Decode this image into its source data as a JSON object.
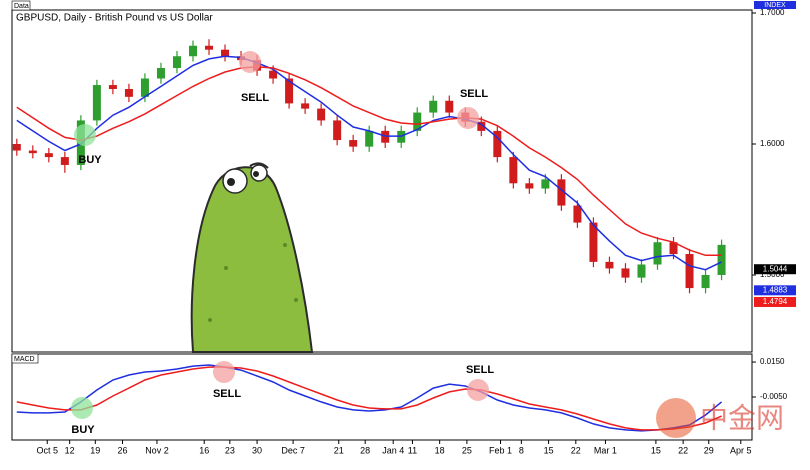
{
  "chart_data": [
    {
      "type": "candlestick",
      "title": "GBPUSD, Daily - British Pound vs US Dollar",
      "panel_label": "Data",
      "axis_badge": "INDEX",
      "x": [
        0,
        1,
        2,
        3,
        4,
        5,
        6,
        7,
        8,
        9,
        10,
        11,
        12,
        13,
        14,
        15,
        16,
        17,
        18,
        19,
        20,
        21,
        22,
        23,
        24,
        25,
        26,
        27,
        28,
        29,
        30,
        31,
        32,
        33,
        34,
        35,
        36,
        37,
        38,
        39,
        40,
        41,
        42,
        43,
        44
      ],
      "open": [
        1.6,
        1.595,
        1.593,
        1.59,
        1.584,
        1.618,
        1.645,
        1.642,
        1.636,
        1.65,
        1.658,
        1.667,
        1.675,
        1.672,
        1.667,
        1.664,
        1.656,
        1.65,
        1.631,
        1.627,
        1.618,
        1.603,
        1.598,
        1.61,
        1.601,
        1.61,
        1.624,
        1.633,
        1.624,
        1.617,
        1.61,
        1.59,
        1.57,
        1.566,
        1.573,
        1.553,
        1.54,
        1.51,
        1.505,
        1.498,
        1.508,
        1.525,
        1.516,
        1.49,
        1.5
      ],
      "high": [
        1.604,
        1.599,
        1.597,
        1.594,
        1.622,
        1.649,
        1.649,
        1.646,
        1.654,
        1.662,
        1.671,
        1.679,
        1.68,
        1.676,
        1.671,
        1.668,
        1.66,
        1.654,
        1.635,
        1.631,
        1.622,
        1.607,
        1.614,
        1.614,
        1.614,
        1.628,
        1.637,
        1.637,
        1.628,
        1.621,
        1.614,
        1.594,
        1.574,
        1.577,
        1.577,
        1.557,
        1.544,
        1.514,
        1.509,
        1.512,
        1.529,
        1.529,
        1.52,
        1.504,
        1.527
      ],
      "low": [
        1.591,
        1.589,
        1.586,
        1.578,
        1.58,
        1.614,
        1.638,
        1.632,
        1.632,
        1.646,
        1.654,
        1.663,
        1.668,
        1.663,
        1.66,
        1.652,
        1.646,
        1.627,
        1.623,
        1.614,
        1.599,
        1.594,
        1.594,
        1.597,
        1.597,
        1.606,
        1.62,
        1.62,
        1.613,
        1.606,
        1.586,
        1.566,
        1.562,
        1.562,
        1.549,
        1.536,
        1.506,
        1.501,
        1.494,
        1.494,
        1.504,
        1.512,
        1.486,
        1.486,
        1.496
      ],
      "close": [
        1.595,
        1.593,
        1.59,
        1.584,
        1.618,
        1.645,
        1.642,
        1.636,
        1.65,
        1.658,
        1.667,
        1.675,
        1.672,
        1.667,
        1.664,
        1.656,
        1.65,
        1.631,
        1.627,
        1.618,
        1.603,
        1.598,
        1.61,
        1.601,
        1.61,
        1.624,
        1.633,
        1.624,
        1.617,
        1.61,
        1.59,
        1.57,
        1.566,
        1.573,
        1.553,
        1.54,
        1.51,
        1.505,
        1.498,
        1.508,
        1.525,
        1.516,
        1.49,
        1.5,
        1.523
      ],
      "up_color": "#2e9e2e",
      "down_color": "#d01c1c",
      "series": [
        {
          "color": "#1f2fe0",
          "values": [
            1.618,
            1.61,
            1.602,
            1.595,
            1.6,
            1.612,
            1.622,
            1.628,
            1.636,
            1.644,
            1.652,
            1.66,
            1.665,
            1.667,
            1.666,
            1.662,
            1.657,
            1.648,
            1.64,
            1.632,
            1.622,
            1.613,
            1.61,
            1.606,
            1.606,
            1.611,
            1.618,
            1.621,
            1.619,
            1.615,
            1.605,
            1.592,
            1.58,
            1.575,
            1.565,
            1.555,
            1.538,
            1.526,
            1.515,
            1.511,
            1.514,
            1.515,
            1.507,
            1.504,
            1.51
          ]
        },
        {
          "color": "#ee1c1c",
          "values": [
            1.628,
            1.62,
            1.612,
            1.605,
            1.603,
            1.606,
            1.612,
            1.617,
            1.623,
            1.63,
            1.637,
            1.644,
            1.65,
            1.655,
            1.658,
            1.659,
            1.658,
            1.654,
            1.649,
            1.643,
            1.636,
            1.629,
            1.624,
            1.619,
            1.616,
            1.615,
            1.617,
            1.619,
            1.62,
            1.619,
            1.614,
            1.606,
            1.597,
            1.59,
            1.582,
            1.573,
            1.561,
            1.55,
            1.539,
            1.532,
            1.528,
            1.525,
            1.519,
            1.515,
            1.515
          ]
        }
      ],
      "price_tags": [
        {
          "value": 1.5044,
          "label": "1.5044",
          "color": "#000000"
        },
        {
          "value": 1.4883,
          "label": "1.4883",
          "color": "#1f2fe0"
        },
        {
          "value": 1.4794,
          "label": "1.4794",
          "color": "#ee1c1c"
        }
      ],
      "annotations": [
        "BUY",
        "SELL",
        "SELL"
      ],
      "xlim": [
        -0.3,
        45.9
      ],
      "ylim": [
        1.4412,
        1.7023
      ],
      "yticks": [
        {
          "value": 1.7,
          "label": "1.7000"
        },
        {
          "value": 1.6,
          "label": "1.6000"
        },
        {
          "value": 1.5,
          "label": "1.5000"
        }
      ]
    },
    {
      "type": "line",
      "panel_label": "MACD",
      "x": [
        0,
        1,
        2,
        3,
        4,
        5,
        6,
        7,
        8,
        9,
        10,
        11,
        12,
        13,
        14,
        15,
        16,
        17,
        18,
        19,
        20,
        21,
        22,
        23,
        24,
        25,
        26,
        27,
        28,
        29,
        30,
        31,
        32,
        33,
        34,
        35,
        36,
        37,
        38,
        39,
        40,
        41,
        42,
        43,
        44
      ],
      "series": [
        {
          "color": "#1f2fe0",
          "values": [
            -0.0136,
            -0.0141,
            -0.0141,
            -0.0136,
            -0.0078,
            -0.001,
            0.0047,
            0.0076,
            0.0093,
            0.0099,
            0.011,
            0.0127,
            0.0133,
            0.0121,
            0.0104,
            0.007,
            0.0036,
            -0.001,
            -0.0044,
            -0.0078,
            -0.0107,
            -0.0124,
            -0.013,
            -0.0124,
            -0.0107,
            -0.0056,
            0.0001,
            0.0024,
            0.0013,
            -0.0021,
            -0.0067,
            -0.0096,
            -0.0113,
            -0.0124,
            -0.0141,
            -0.017,
            -0.0204,
            -0.0227,
            -0.0238,
            -0.0244,
            -0.0238,
            -0.0227,
            -0.021,
            -0.0153,
            -0.0078
          ]
        },
        {
          "color": "#ee1c1c",
          "values": [
            -0.0078,
            -0.0096,
            -0.0113,
            -0.0124,
            -0.0124,
            -0.0096,
            -0.0044,
            0.0001,
            0.0047,
            0.0076,
            0.0093,
            0.011,
            0.0121,
            0.0121,
            0.0116,
            0.0099,
            0.007,
            0.0036,
            0.0001,
            -0.0033,
            -0.0067,
            -0.0096,
            -0.0113,
            -0.0118,
            -0.0118,
            -0.0096,
            -0.0056,
            -0.0021,
            -0.0004,
            -0.001,
            -0.0033,
            -0.0061,
            -0.009,
            -0.0107,
            -0.0124,
            -0.0147,
            -0.0176,
            -0.0204,
            -0.0227,
            -0.0238,
            -0.0238,
            -0.0233,
            -0.0221,
            -0.0199,
            -0.0159
          ]
        }
      ],
      "annotations": [
        "BUY",
        "SELL",
        "SELL"
      ],
      "xlim": [
        -0.3,
        45.9
      ],
      "ylim": [
        -0.0296,
        0.0196
      ],
      "yticks": [
        {
          "value": 0.015,
          "label": "0.0150"
        },
        {
          "value": -0.005,
          "label": "-0.0050"
        }
      ],
      "xticks": [
        {
          "value": 1.9,
          "label": "Oct 5"
        },
        {
          "value": 3.3,
          "label": "12"
        },
        {
          "value": 4.9,
          "label": "19"
        },
        {
          "value": 6.6,
          "label": "26"
        },
        {
          "value": 8.75,
          "label": "Nov 2"
        },
        {
          "value": 11.7,
          "label": "16"
        },
        {
          "value": 13.3,
          "label": "23"
        },
        {
          "value": 15,
          "label": "30"
        },
        {
          "value": 17.25,
          "label": "Dec 7"
        },
        {
          "value": 20.1,
          "label": "21"
        },
        {
          "value": 21.75,
          "label": "28"
        },
        {
          "value": 23.5,
          "label": "Jan 4"
        },
        {
          "value": 24.7,
          "label": "11"
        },
        {
          "value": 26.4,
          "label": "18"
        },
        {
          "value": 28.1,
          "label": "25"
        },
        {
          "value": 30.2,
          "label": "Feb 1"
        },
        {
          "value": 31.5,
          "label": "8"
        },
        {
          "value": 33.2,
          "label": "15"
        },
        {
          "value": 34.9,
          "label": "22"
        },
        {
          "value": 36.75,
          "label": "Mar 1"
        },
        {
          "value": 39.9,
          "label": "15"
        },
        {
          "value": 41.6,
          "label": "22"
        },
        {
          "value": 43.2,
          "label": "29"
        },
        {
          "value": 45.2,
          "label": "Apr 5"
        }
      ]
    }
  ],
  "watermark": "中金网"
}
